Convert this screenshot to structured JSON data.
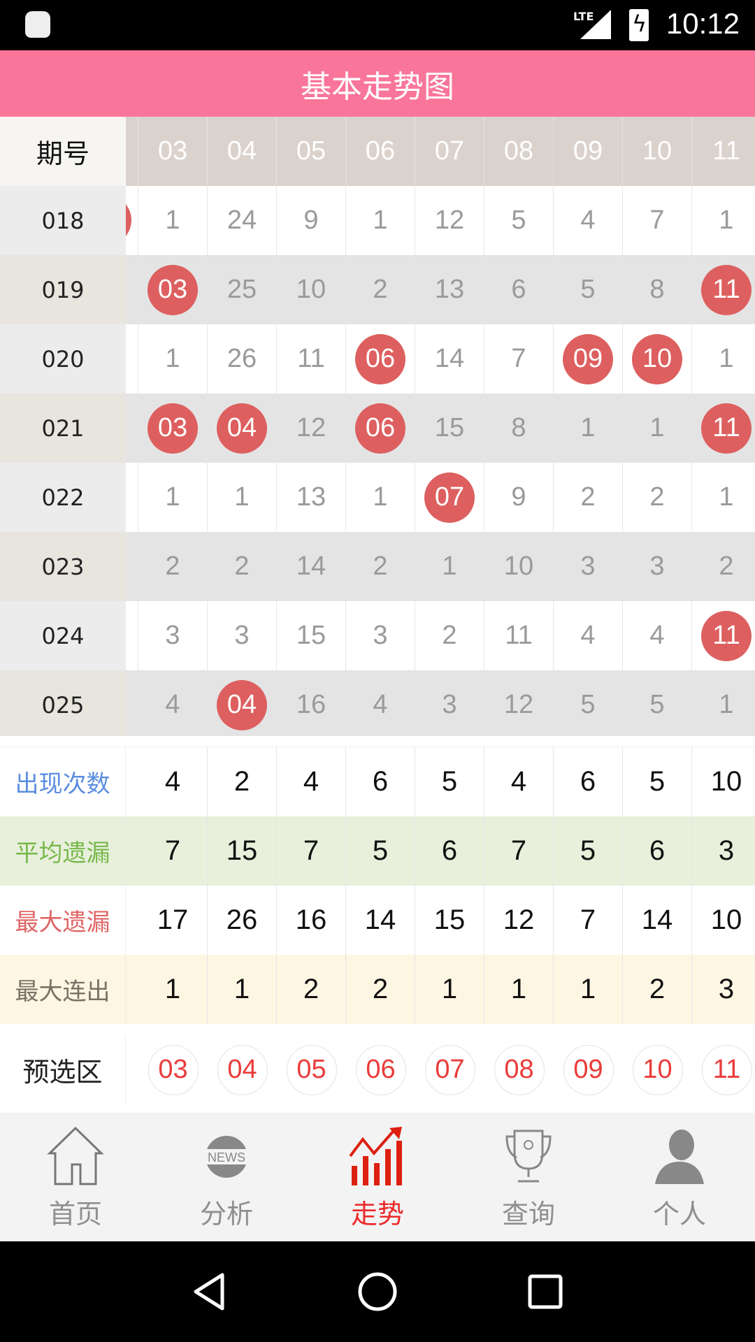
{
  "status": {
    "time": "10:12",
    "network": "LTE"
  },
  "title": "基本走势图",
  "header": {
    "label": "期号",
    "columns": [
      "03",
      "04",
      "05",
      "06",
      "07",
      "08",
      "09",
      "10",
      "11"
    ]
  },
  "rows": [
    {
      "issue": "018",
      "values": [
        "1",
        "24",
        "9",
        "1",
        "12",
        "5",
        "4",
        "7",
        "1"
      ],
      "hits": []
    },
    {
      "issue": "019",
      "values": [
        "03",
        "25",
        "10",
        "2",
        "13",
        "6",
        "5",
        "8",
        "11"
      ],
      "hits": [
        0,
        8
      ]
    },
    {
      "issue": "020",
      "values": [
        "1",
        "26",
        "11",
        "06",
        "14",
        "7",
        "09",
        "10",
        "1"
      ],
      "hits": [
        3,
        6,
        7
      ]
    },
    {
      "issue": "021",
      "values": [
        "03",
        "04",
        "12",
        "06",
        "15",
        "8",
        "1",
        "1",
        "11"
      ],
      "hits": [
        0,
        1,
        3,
        8
      ]
    },
    {
      "issue": "022",
      "values": [
        "1",
        "1",
        "13",
        "1",
        "07",
        "9",
        "2",
        "2",
        "1"
      ],
      "hits": [
        4
      ]
    },
    {
      "issue": "023",
      "values": [
        "2",
        "2",
        "14",
        "2",
        "1",
        "10",
        "3",
        "3",
        "2"
      ],
      "hits": []
    },
    {
      "issue": "024",
      "values": [
        "3",
        "3",
        "15",
        "3",
        "2",
        "11",
        "4",
        "4",
        "11"
      ],
      "hits": [
        8
      ]
    },
    {
      "issue": "025",
      "values": [
        "4",
        "04",
        "16",
        "4",
        "3",
        "12",
        "5",
        "5",
        "1"
      ],
      "hits": [
        1
      ]
    }
  ],
  "stats": [
    {
      "label": "出现次数",
      "color": "#5b8de0",
      "bg": "#ffffff",
      "values": [
        "4",
        "2",
        "4",
        "6",
        "5",
        "4",
        "6",
        "5",
        "10"
      ]
    },
    {
      "label": "平均遗漏",
      "color": "#78b84a",
      "bg": "#e8f0dc",
      "values": [
        "7",
        "15",
        "7",
        "5",
        "6",
        "7",
        "5",
        "6",
        "3"
      ]
    },
    {
      "label": "最大遗漏",
      "color": "#e06565",
      "bg": "#ffffff",
      "values": [
        "17",
        "26",
        "16",
        "14",
        "15",
        "12",
        "7",
        "14",
        "10"
      ]
    },
    {
      "label": "最大连出",
      "color": "#7a7064",
      "bg": "#fdf6e3",
      "values": [
        "1",
        "1",
        "2",
        "2",
        "1",
        "1",
        "1",
        "2",
        "3"
      ]
    }
  ],
  "preselect": {
    "label": "预选区",
    "numbers": [
      "03",
      "04",
      "05",
      "06",
      "07",
      "08",
      "09",
      "10",
      "11"
    ]
  },
  "nav": [
    {
      "label": "首页",
      "icon": "home-icon"
    },
    {
      "label": "分析",
      "icon": "news-icon"
    },
    {
      "label": "走势",
      "icon": "trend-chart-icon",
      "active": true
    },
    {
      "label": "查询",
      "icon": "trophy-icon"
    },
    {
      "label": "个人",
      "icon": "user-icon"
    }
  ],
  "colors": {
    "accent": "#f9769a",
    "ball": "#dd5f5f",
    "active_nav": "#ec2a2a"
  }
}
